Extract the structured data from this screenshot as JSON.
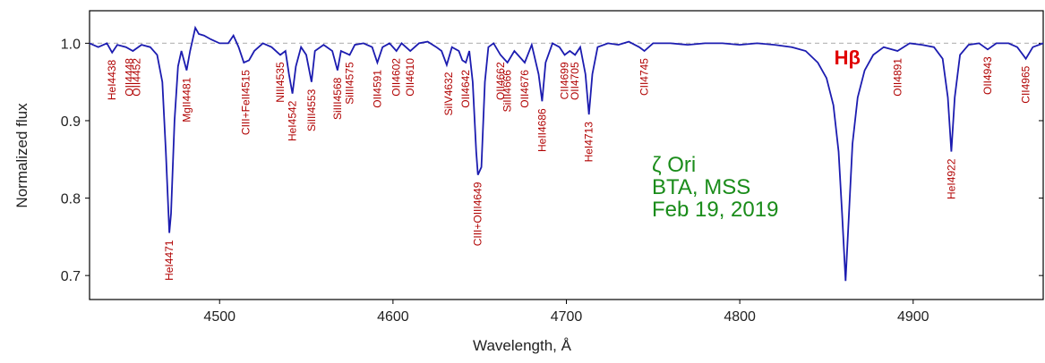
{
  "chart_data": {
    "type": "line",
    "x_label": "Wavelength, Å",
    "y_label": "Normalized flux",
    "xlim": [
      4425,
      4975
    ],
    "ylim": [
      0.669,
      1.042
    ],
    "xticks": [
      4500,
      4600,
      4700,
      4800,
      4900
    ],
    "yticks": [
      0.7,
      0.8,
      0.9,
      {
        "value": 1,
        "label": "1.0"
      }
    ],
    "reference_line": 1,
    "series": [
      {
        "color": "#1c1cb0",
        "x": [
          4425,
          4430,
          4435,
          4438,
          4441,
          4446,
          4450,
          4455,
          4460,
          4464,
          4467,
          4469,
          4471,
          4472,
          4474,
          4476,
          4478,
          4481,
          4483,
          4486,
          4488,
          4491,
          4495,
          4500,
          4505,
          4508,
          4511,
          4514,
          4517,
          4520,
          4525,
          4530,
          4535,
          4538,
          4540,
          4542,
          4544,
          4547,
          4550,
          4553,
          4555,
          4560,
          4565,
          4568,
          4570,
          4575,
          4578,
          4583,
          4588,
          4591,
          4594,
          4598,
          4602,
          4605,
          4610,
          4615,
          4620,
          4625,
          4628,
          4631,
          4634,
          4638,
          4640,
          4642,
          4644,
          4646,
          4648,
          4649,
          4651,
          4653,
          4655,
          4658,
          4662,
          4666,
          4670,
          4676,
          4680,
          4684,
          4686,
          4688,
          4692,
          4696,
          4699,
          4702,
          4705,
          4708,
          4711,
          4713,
          4715,
          4718,
          4724,
          4730,
          4736,
          4742,
          4745,
          4750,
          4760,
          4770,
          4780,
          4790,
          4800,
          4810,
          4820,
          4830,
          4838,
          4845,
          4850,
          4854,
          4857,
          4859,
          4861,
          4863,
          4865,
          4868,
          4872,
          4877,
          4883,
          4891,
          4898,
          4905,
          4912,
          4917,
          4920,
          4922,
          4924,
          4927,
          4932,
          4938,
          4943,
          4948,
          4955,
          4960,
          4965,
          4969,
          4975
        ],
        "values": [
          1.0,
          0.995,
          1.0,
          0.988,
          0.998,
          0.995,
          0.99,
          0.998,
          0.995,
          0.985,
          0.95,
          0.86,
          0.755,
          0.78,
          0.9,
          0.97,
          0.99,
          0.965,
          0.99,
          1.02,
          1.012,
          1.01,
          1.005,
          1.0,
          1.0,
          1.01,
          0.995,
          0.975,
          0.978,
          0.99,
          1.0,
          0.995,
          0.985,
          0.99,
          0.96,
          0.935,
          0.97,
          0.995,
          0.985,
          0.95,
          0.99,
          0.998,
          0.99,
          0.965,
          0.99,
          0.985,
          0.998,
          1.0,
          0.995,
          0.975,
          0.995,
          1.0,
          0.99,
          1.0,
          0.99,
          1.0,
          1.002,
          0.995,
          0.99,
          0.972,
          0.995,
          0.99,
          0.978,
          0.975,
          0.99,
          0.95,
          0.86,
          0.83,
          0.84,
          0.95,
          0.995,
          1.0,
          0.985,
          0.975,
          0.99,
          0.975,
          0.998,
          0.96,
          0.925,
          0.975,
          1.0,
          0.995,
          0.985,
          0.99,
          0.985,
          0.995,
          0.96,
          0.908,
          0.96,
          0.995,
          1.0,
          0.998,
          1.002,
          0.995,
          0.99,
          1.0,
          1.0,
          0.998,
          1.0,
          1.0,
          0.998,
          1.0,
          0.998,
          0.995,
          0.99,
          0.975,
          0.955,
          0.92,
          0.86,
          0.78,
          0.693,
          0.78,
          0.87,
          0.93,
          0.965,
          0.985,
          0.995,
          0.99,
          1.0,
          0.998,
          0.995,
          0.98,
          0.93,
          0.86,
          0.93,
          0.985,
          0.998,
          1.0,
          0.992,
          1.0,
          1.0,
          0.995,
          0.98,
          0.995,
          1.0
        ]
      }
    ],
    "line_labels": [
      {
        "text": "HeI4438",
        "x": 4438
      },
      {
        "text": "OII4448",
        "x": 4448
      },
      {
        "text": "OII4452",
        "x": 4452
      },
      {
        "text": "HeI4471",
        "x": 4471
      },
      {
        "text": "MgII4481",
        "x": 4481
      },
      {
        "text": "CIII+FeII4515",
        "x": 4515
      },
      {
        "text": "NIII4535",
        "x": 4535
      },
      {
        "text": "HeI4542",
        "x": 4542
      },
      {
        "text": "SiIII4553",
        "x": 4553
      },
      {
        "text": "SiIII4568",
        "x": 4568
      },
      {
        "text": "SiIII4575",
        "x": 4575
      },
      {
        "text": "OII4591",
        "x": 4591
      },
      {
        "text": "OII4602",
        "x": 4602
      },
      {
        "text": "OII4610",
        "x": 4610
      },
      {
        "text": "SiIV4632",
        "x": 4632
      },
      {
        "text": "OII4642",
        "x": 4642
      },
      {
        "text": "CIII+OIII4649",
        "x": 4649
      },
      {
        "text": "OII4662",
        "x": 4662
      },
      {
        "text": "SiIII4666",
        "x": 4666
      },
      {
        "text": "OII4676",
        "x": 4676
      },
      {
        "text": "HeII4686",
        "x": 4686
      },
      {
        "text": "CII4699",
        "x": 4699
      },
      {
        "text": "OII4705",
        "x": 4705
      },
      {
        "text": "HeI4713",
        "x": 4713
      },
      {
        "text": "CII4745",
        "x": 4745
      },
      {
        "text": "OII4891",
        "x": 4891
      },
      {
        "text": "HeI4922",
        "x": 4922
      },
      {
        "text": "OII4943",
        "x": 4943
      },
      {
        "text": "CII4965",
        "x": 4965
      }
    ],
    "hbeta_label": {
      "text": "Hβ",
      "x": 4861
    },
    "annotation": [
      "ζ Ori",
      "BTA, MSS",
      "Feb 19, 2019"
    ]
  }
}
